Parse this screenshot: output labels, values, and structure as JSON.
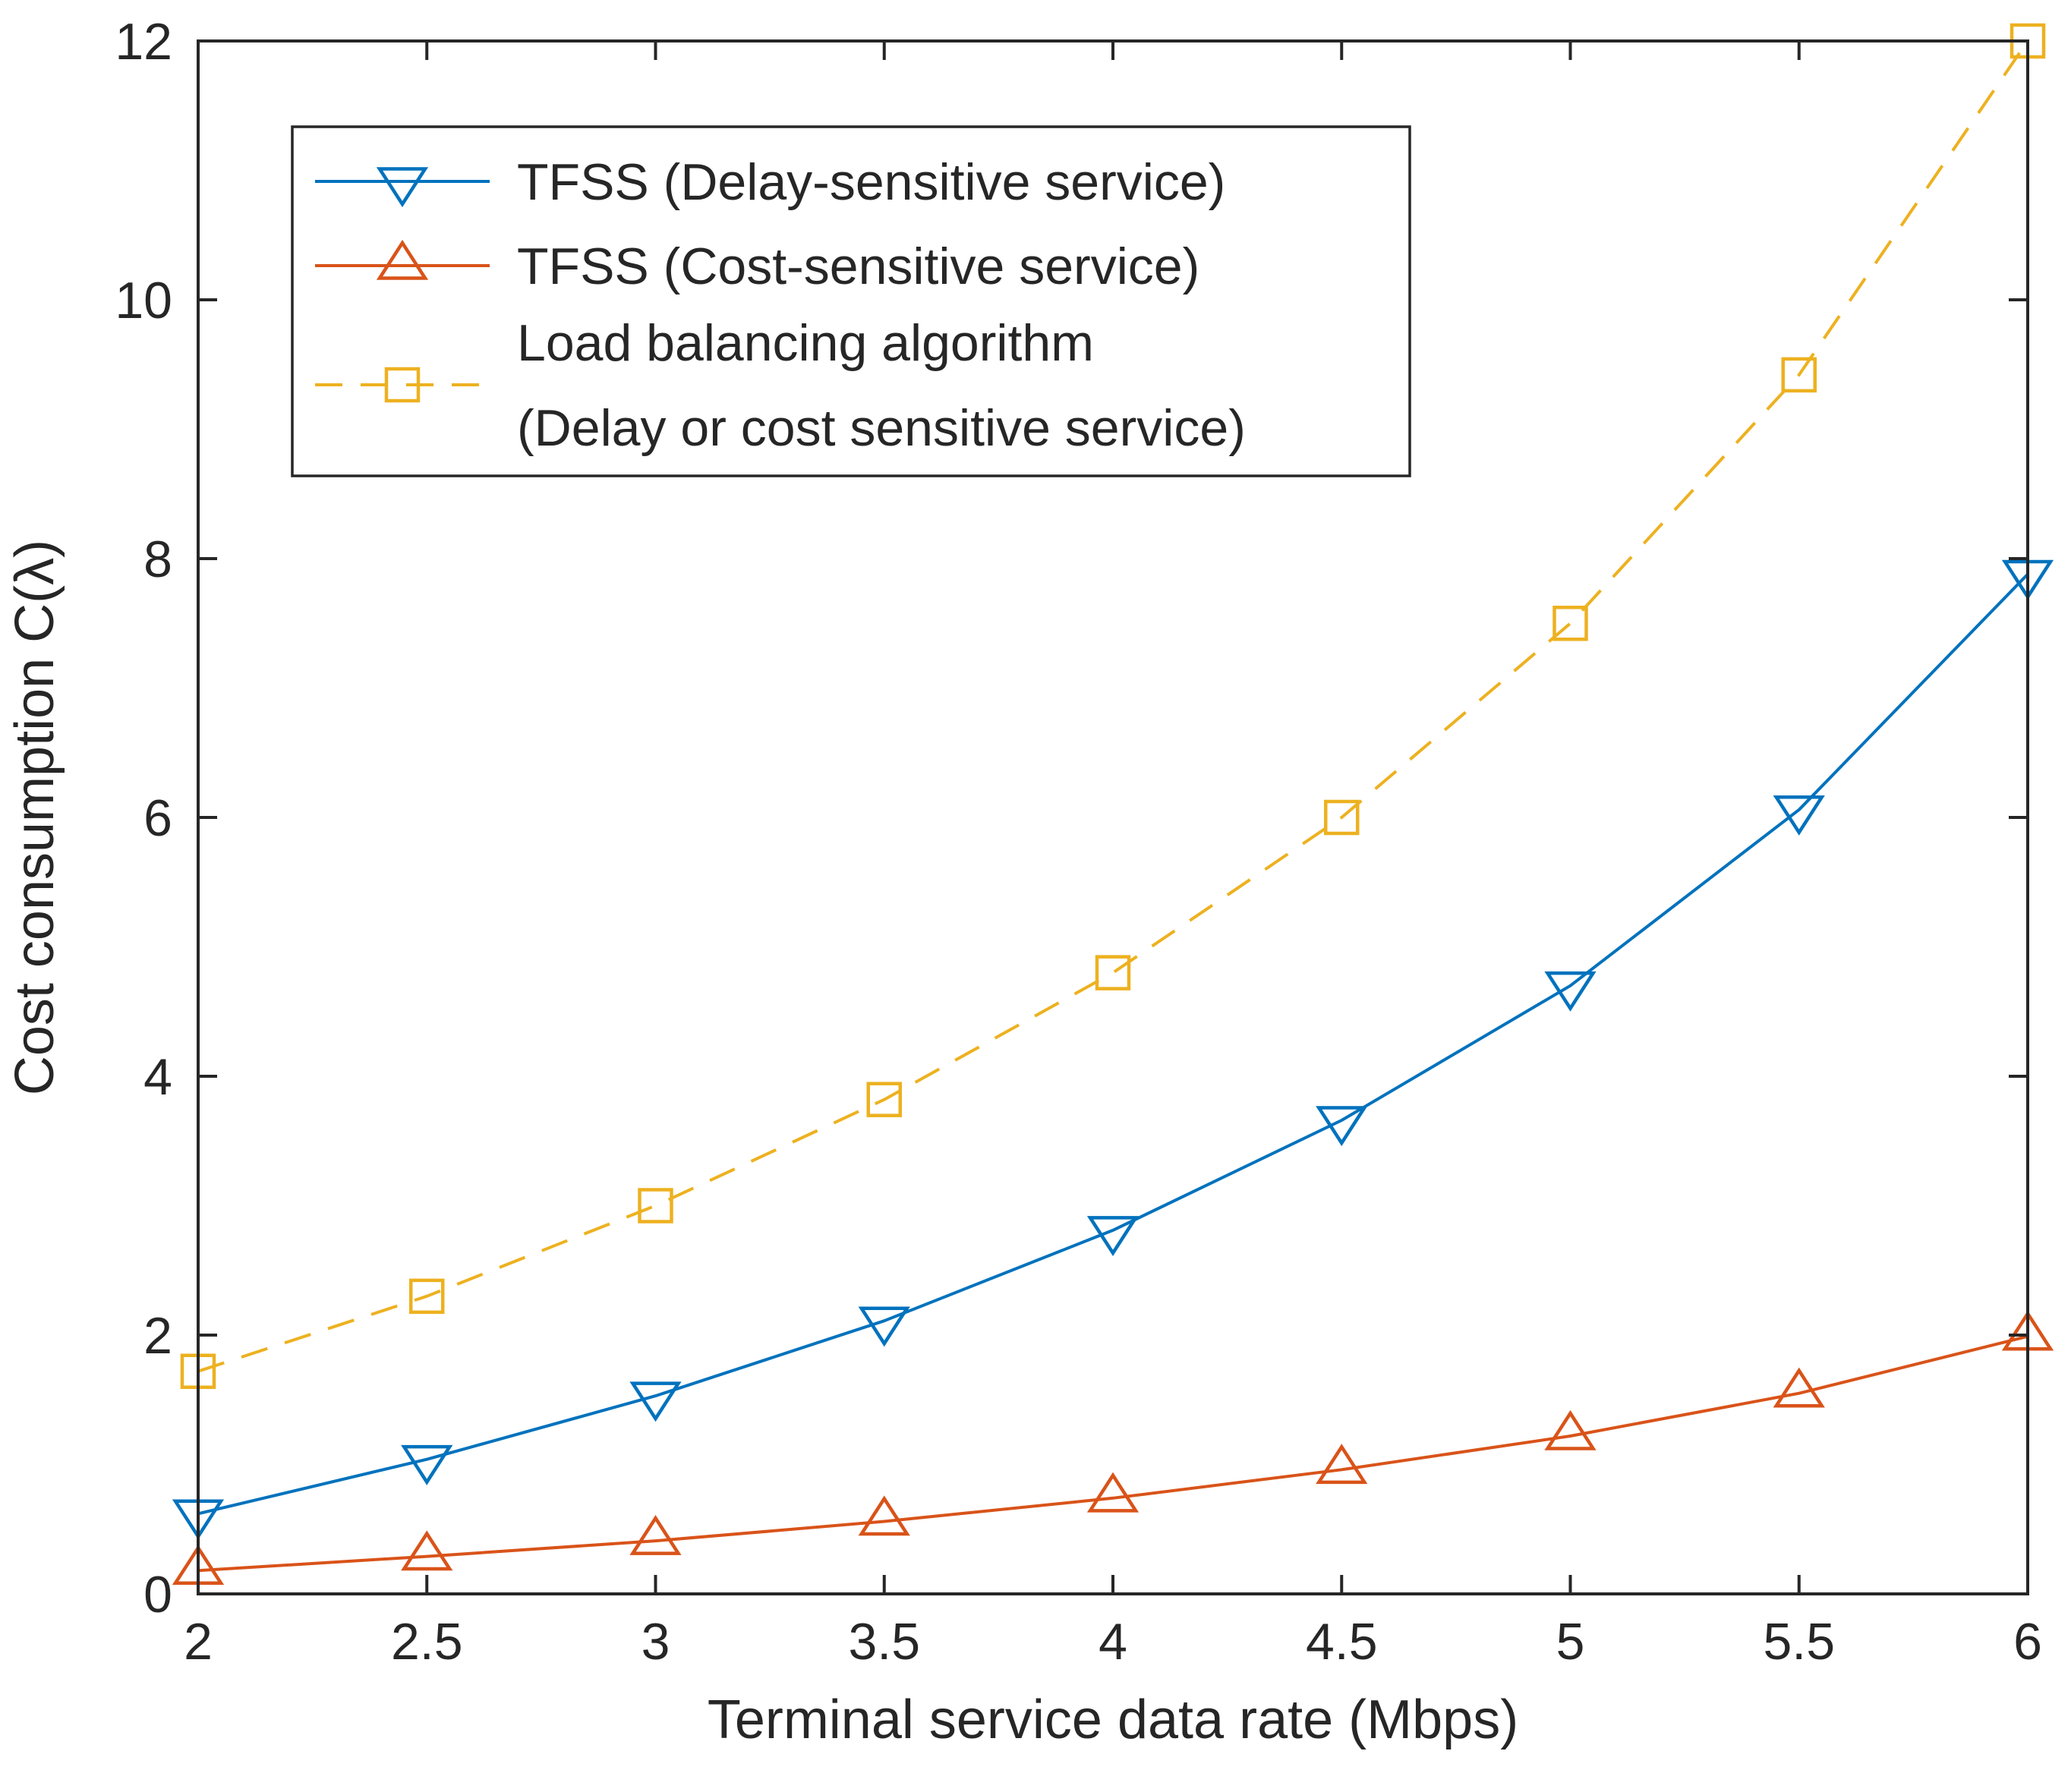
{
  "chart_data": {
    "type": "line",
    "title": "",
    "xlabel": "Terminal service data rate (Mbps)",
    "ylabel": "Cost consumption C(λ)",
    "xlim": [
      2,
      6
    ],
    "ylim": [
      0,
      12
    ],
    "x": [
      2,
      2.5,
      3,
      3.5,
      4,
      4.5,
      5,
      5.5,
      6
    ],
    "xticks": [
      2,
      2.5,
      3,
      3.5,
      4,
      4.5,
      5,
      5.5,
      6
    ],
    "xtick_labels": [
      "2",
      "2.5",
      "3",
      "3.5",
      "4",
      "4.5",
      "5",
      "5.5",
      "6"
    ],
    "yticks": [
      0,
      2,
      4,
      6,
      8,
      10,
      12
    ],
    "ytick_labels": [
      "0",
      "2",
      "4",
      "6",
      "8",
      "10",
      "12"
    ],
    "grid": false,
    "legend_position": "top-left",
    "series": [
      {
        "name": "TFSS (Delay-sensitive service)",
        "legend_lines": [
          "TFSS (Delay-sensitive service)"
        ],
        "values": [
          0.62,
          1.04,
          1.53,
          2.11,
          2.81,
          3.66,
          4.7,
          6.06,
          7.88
        ],
        "color": "#0072BD",
        "marker": "triangle-down",
        "line_style": "solid"
      },
      {
        "name": "TFSS (Cost-sensitive service)",
        "legend_lines": [
          "TFSS (Cost-sensitive service)"
        ],
        "values": [
          0.18,
          0.29,
          0.41,
          0.56,
          0.74,
          0.96,
          1.22,
          1.55,
          1.99
        ],
        "color": "#D95319",
        "marker": "triangle-up",
        "line_style": "solid"
      },
      {
        "name": "Load balancing algorithm (Delay or cost sensitive service)",
        "legend_lines": [
          "Load balancing algorithm",
          "(Delay or cost sensitive service)"
        ],
        "values": [
          1.72,
          2.3,
          3.0,
          3.82,
          4.8,
          6.0,
          7.5,
          9.42,
          12.0
        ],
        "color": "#EDB120",
        "marker": "square",
        "line_style": "dashed"
      }
    ]
  }
}
